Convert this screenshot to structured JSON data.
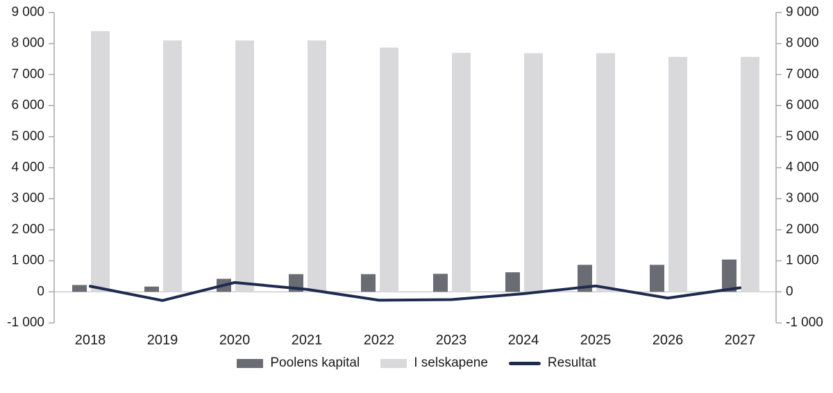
{
  "chart_data": {
    "type": "bar",
    "subtype": "composed-bar-line-dual-axis",
    "categories": [
      "2018",
      "2019",
      "2020",
      "2021",
      "2022",
      "2023",
      "2024",
      "2025",
      "2026",
      "2027"
    ],
    "series": [
      {
        "name": "Poolens kapital",
        "type": "bar",
        "color": "#696c73",
        "values": [
          220,
          170,
          420,
          570,
          570,
          580,
          630,
          870,
          870,
          1040
        ]
      },
      {
        "name": "I selskapene",
        "type": "bar",
        "color": "#d9d9db",
        "values": [
          8400,
          8100,
          8100,
          8100,
          7870,
          7700,
          7690,
          7690,
          7570,
          7570
        ]
      },
      {
        "name": "Resultat",
        "type": "line",
        "color": "#1e2b50",
        "values": [
          180,
          -280,
          300,
          80,
          -270,
          -250,
          -60,
          190,
          -200,
          130
        ]
      }
    ],
    "title": "",
    "xlabel": "",
    "ylabel": "",
    "y_axis": {
      "min": -1000,
      "max": 9000,
      "step": 1000,
      "tick_labels": [
        "9 000",
        "8 000",
        "7 000",
        "6 000",
        "5 000",
        "4 000",
        "3 000",
        "2 000",
        "1 000",
        "0",
        "-1 000"
      ],
      "sides": [
        "left",
        "right"
      ]
    },
    "grid": false,
    "zero_line": true,
    "legend_position": "bottom"
  },
  "style": {
    "axis_line_color": "#a6a6a6",
    "zero_line_color": "#b3b3b3",
    "text_color": "#1a1a1a",
    "tick_font_size": 19,
    "category_font_size": 20
  }
}
